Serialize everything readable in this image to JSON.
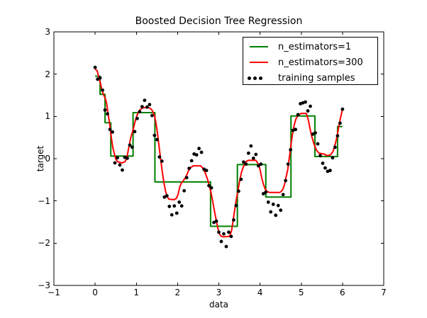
{
  "chart_data": {
    "type": "line",
    "title": "Boosted Decision Tree Regression",
    "xlabel": "data",
    "ylabel": "target",
    "xlim": [
      -1,
      7
    ],
    "ylim": [
      -3,
      3
    ],
    "xticks": [
      -1,
      0,
      1,
      2,
      3,
      4,
      5,
      6,
      7
    ],
    "yticks": [
      -3,
      -2,
      -1,
      0,
      1,
      2,
      3
    ],
    "grid": false,
    "legend_position": "upper right",
    "series": [
      {
        "name": "n_estimators=1",
        "type": "step",
        "color": "#008000",
        "linewidth": 2,
        "segments": [
          [
            0.0,
            0.12,
            1.95
          ],
          [
            0.12,
            0.24,
            1.52
          ],
          [
            0.24,
            0.38,
            0.85
          ],
          [
            0.38,
            0.92,
            0.06
          ],
          [
            0.92,
            1.45,
            1.09
          ],
          [
            1.45,
            2.8,
            -0.55
          ],
          [
            2.8,
            3.45,
            -1.6
          ],
          [
            3.45,
            4.14,
            -0.14
          ],
          [
            4.14,
            4.75,
            -0.91
          ],
          [
            4.75,
            5.33,
            1.01
          ],
          [
            5.33,
            5.88,
            0.05
          ],
          [
            5.88,
            6.0,
            0.76
          ]
        ]
      },
      {
        "name": "n_estimators=300",
        "type": "line",
        "color": "#ff0000",
        "linewidth": 2,
        "points": [
          [
            0.0,
            2.12
          ],
          [
            0.05,
            2.08
          ],
          [
            0.09,
            1.92
          ],
          [
            0.13,
            1.78
          ],
          [
            0.17,
            1.6
          ],
          [
            0.21,
            1.5
          ],
          [
            0.25,
            1.42
          ],
          [
            0.28,
            1.3
          ],
          [
            0.31,
            1.08
          ],
          [
            0.35,
            0.84
          ],
          [
            0.39,
            0.52
          ],
          [
            0.43,
            0.26
          ],
          [
            0.47,
            0.1
          ],
          [
            0.51,
            -0.03
          ],
          [
            0.56,
            -0.08
          ],
          [
            0.66,
            -0.1
          ],
          [
            0.73,
            -0.07
          ],
          [
            0.77,
            0.03
          ],
          [
            0.81,
            0.23
          ],
          [
            0.86,
            0.48
          ],
          [
            0.93,
            0.72
          ],
          [
            0.98,
            0.92
          ],
          [
            1.03,
            1.06
          ],
          [
            1.09,
            1.16
          ],
          [
            1.15,
            1.2
          ],
          [
            1.25,
            1.21
          ],
          [
            1.32,
            1.2
          ],
          [
            1.38,
            1.15
          ],
          [
            1.43,
            1.05
          ],
          [
            1.47,
            0.88
          ],
          [
            1.51,
            0.62
          ],
          [
            1.55,
            0.3
          ],
          [
            1.59,
            -0.02
          ],
          [
            1.63,
            -0.32
          ],
          [
            1.67,
            -0.58
          ],
          [
            1.71,
            -0.78
          ],
          [
            1.75,
            -0.9
          ],
          [
            1.79,
            -0.96
          ],
          [
            1.92,
            -0.97
          ],
          [
            1.97,
            -0.94
          ],
          [
            2.01,
            -0.85
          ],
          [
            2.05,
            -0.68
          ],
          [
            2.09,
            -0.58
          ],
          [
            2.14,
            -0.52
          ],
          [
            2.19,
            -0.45
          ],
          [
            2.23,
            -0.37
          ],
          [
            2.27,
            -0.27
          ],
          [
            2.33,
            -0.2
          ],
          [
            2.39,
            -0.17
          ],
          [
            2.56,
            -0.17
          ],
          [
            2.62,
            -0.23
          ],
          [
            2.67,
            -0.34
          ],
          [
            2.72,
            -0.47
          ],
          [
            2.77,
            -0.64
          ],
          [
            2.81,
            -0.8
          ],
          [
            2.85,
            -1.0
          ],
          [
            2.89,
            -1.22
          ],
          [
            2.93,
            -1.42
          ],
          [
            2.97,
            -1.62
          ],
          [
            3.01,
            -1.77
          ],
          [
            3.05,
            -1.83
          ],
          [
            3.1,
            -1.85
          ],
          [
            3.26,
            -1.84
          ],
          [
            3.31,
            -1.7
          ],
          [
            3.35,
            -1.44
          ],
          [
            3.39,
            -1.18
          ],
          [
            3.43,
            -0.94
          ],
          [
            3.47,
            -0.72
          ],
          [
            3.51,
            -0.5
          ],
          [
            3.55,
            -0.32
          ],
          [
            3.6,
            -0.18
          ],
          [
            3.66,
            -0.07
          ],
          [
            3.72,
            -0.04
          ],
          [
            3.9,
            -0.04
          ],
          [
            3.96,
            -0.13
          ],
          [
            4.0,
            -0.26
          ],
          [
            4.04,
            -0.45
          ],
          [
            4.08,
            -0.6
          ],
          [
            4.12,
            -0.71
          ],
          [
            4.17,
            -0.78
          ],
          [
            4.23,
            -0.8
          ],
          [
            4.48,
            -0.8
          ],
          [
            4.54,
            -0.75
          ],
          [
            4.59,
            -0.63
          ],
          [
            4.63,
            -0.44
          ],
          [
            4.67,
            -0.27
          ],
          [
            4.71,
            0.02
          ],
          [
            4.75,
            0.32
          ],
          [
            4.79,
            0.6
          ],
          [
            4.83,
            0.8
          ],
          [
            4.87,
            0.94
          ],
          [
            4.93,
            1.04
          ],
          [
            5.0,
            1.07
          ],
          [
            5.12,
            1.07
          ],
          [
            5.17,
            0.92
          ],
          [
            5.21,
            0.72
          ],
          [
            5.25,
            0.54
          ],
          [
            5.31,
            0.34
          ],
          [
            5.37,
            0.2
          ],
          [
            5.43,
            0.13
          ],
          [
            5.55,
            0.11
          ],
          [
            5.63,
            0.07
          ],
          [
            5.71,
            0.09
          ],
          [
            5.77,
            0.17
          ],
          [
            5.83,
            0.37
          ],
          [
            5.87,
            0.53
          ],
          [
            5.91,
            0.76
          ],
          [
            5.95,
            0.96
          ],
          [
            6.0,
            1.17
          ]
        ]
      },
      {
        "name": "training samples",
        "type": "scatter",
        "color": "#000000",
        "marker_radius": 2.4,
        "points": [
          [
            0.0,
            2.16
          ],
          [
            0.06,
            1.88
          ],
          [
            0.12,
            1.91
          ],
          [
            0.18,
            1.62
          ],
          [
            0.24,
            1.15
          ],
          [
            0.3,
            1.06
          ],
          [
            0.36,
            0.69
          ],
          [
            0.42,
            0.63
          ],
          [
            0.48,
            -0.1
          ],
          [
            0.54,
            0.02
          ],
          [
            0.6,
            -0.15
          ],
          [
            0.66,
            -0.27
          ],
          [
            0.72,
            0.03
          ],
          [
            0.78,
            0.01
          ],
          [
            0.84,
            0.32
          ],
          [
            0.9,
            0.27
          ],
          [
            0.96,
            0.64
          ],
          [
            1.02,
            0.95
          ],
          [
            1.08,
            1.11
          ],
          [
            1.14,
            1.23
          ],
          [
            1.2,
            1.38
          ],
          [
            1.26,
            1.22
          ],
          [
            1.32,
            1.28
          ],
          [
            1.38,
            1.02
          ],
          [
            1.44,
            0.55
          ],
          [
            1.5,
            0.45
          ],
          [
            1.56,
            0.04
          ],
          [
            1.62,
            -0.06
          ],
          [
            1.68,
            -0.91
          ],
          [
            1.74,
            -0.88
          ],
          [
            1.8,
            -1.13
          ],
          [
            1.86,
            -1.33
          ],
          [
            1.92,
            -1.12
          ],
          [
            1.98,
            -1.29
          ],
          [
            2.04,
            -1.03
          ],
          [
            2.1,
            -1.12
          ],
          [
            2.16,
            -0.76
          ],
          [
            2.22,
            -0.45
          ],
          [
            2.28,
            -0.23
          ],
          [
            2.34,
            -0.05
          ],
          [
            2.4,
            0.11
          ],
          [
            2.46,
            0.09
          ],
          [
            2.52,
            0.24
          ],
          [
            2.58,
            0.15
          ],
          [
            2.64,
            -0.25
          ],
          [
            2.7,
            -0.28
          ],
          [
            2.76,
            -0.64
          ],
          [
            2.82,
            -0.69
          ],
          [
            2.88,
            -1.51
          ],
          [
            2.94,
            -1.48
          ],
          [
            3.0,
            -1.74
          ],
          [
            3.06,
            -1.96
          ],
          [
            3.12,
            -1.78
          ],
          [
            3.18,
            -2.08
          ],
          [
            3.24,
            -1.74
          ],
          [
            3.3,
            -1.84
          ],
          [
            3.36,
            -1.45
          ],
          [
            3.42,
            -1.11
          ],
          [
            3.48,
            -0.77
          ],
          [
            3.54,
            -0.49
          ],
          [
            3.6,
            -0.08
          ],
          [
            3.66,
            -0.13
          ],
          [
            3.72,
            0.13
          ],
          [
            3.78,
            0.3
          ],
          [
            3.84,
            0.01
          ],
          [
            3.9,
            0.1
          ],
          [
            3.96,
            -0.17
          ],
          [
            4.02,
            -0.13
          ],
          [
            4.08,
            -0.83
          ],
          [
            4.14,
            -0.79
          ],
          [
            4.2,
            -1.03
          ],
          [
            4.26,
            -1.26
          ],
          [
            4.32,
            -1.08
          ],
          [
            4.38,
            -1.34
          ],
          [
            4.44,
            -1.11
          ],
          [
            4.5,
            -1.22
          ],
          [
            4.56,
            -0.85
          ],
          [
            4.62,
            -0.52
          ],
          [
            4.68,
            -0.13
          ],
          [
            4.74,
            0.21
          ],
          [
            4.8,
            0.67
          ],
          [
            4.86,
            0.69
          ],
          [
            4.92,
            1.04
          ],
          [
            4.98,
            1.3
          ],
          [
            5.04,
            1.32
          ],
          [
            5.1,
            1.34
          ],
          [
            5.16,
            1.13
          ],
          [
            5.22,
            1.24
          ],
          [
            5.28,
            0.58
          ],
          [
            5.34,
            0.61
          ],
          [
            5.4,
            0.35
          ],
          [
            5.46,
            0.07
          ],
          [
            5.52,
            -0.11
          ],
          [
            5.58,
            -0.22
          ],
          [
            5.64,
            -0.3
          ],
          [
            5.7,
            -0.28
          ],
          [
            5.76,
            0.02
          ],
          [
            5.82,
            0.27
          ],
          [
            5.88,
            0.54
          ],
          [
            5.94,
            0.84
          ],
          [
            6.0,
            1.17
          ]
        ]
      }
    ]
  }
}
